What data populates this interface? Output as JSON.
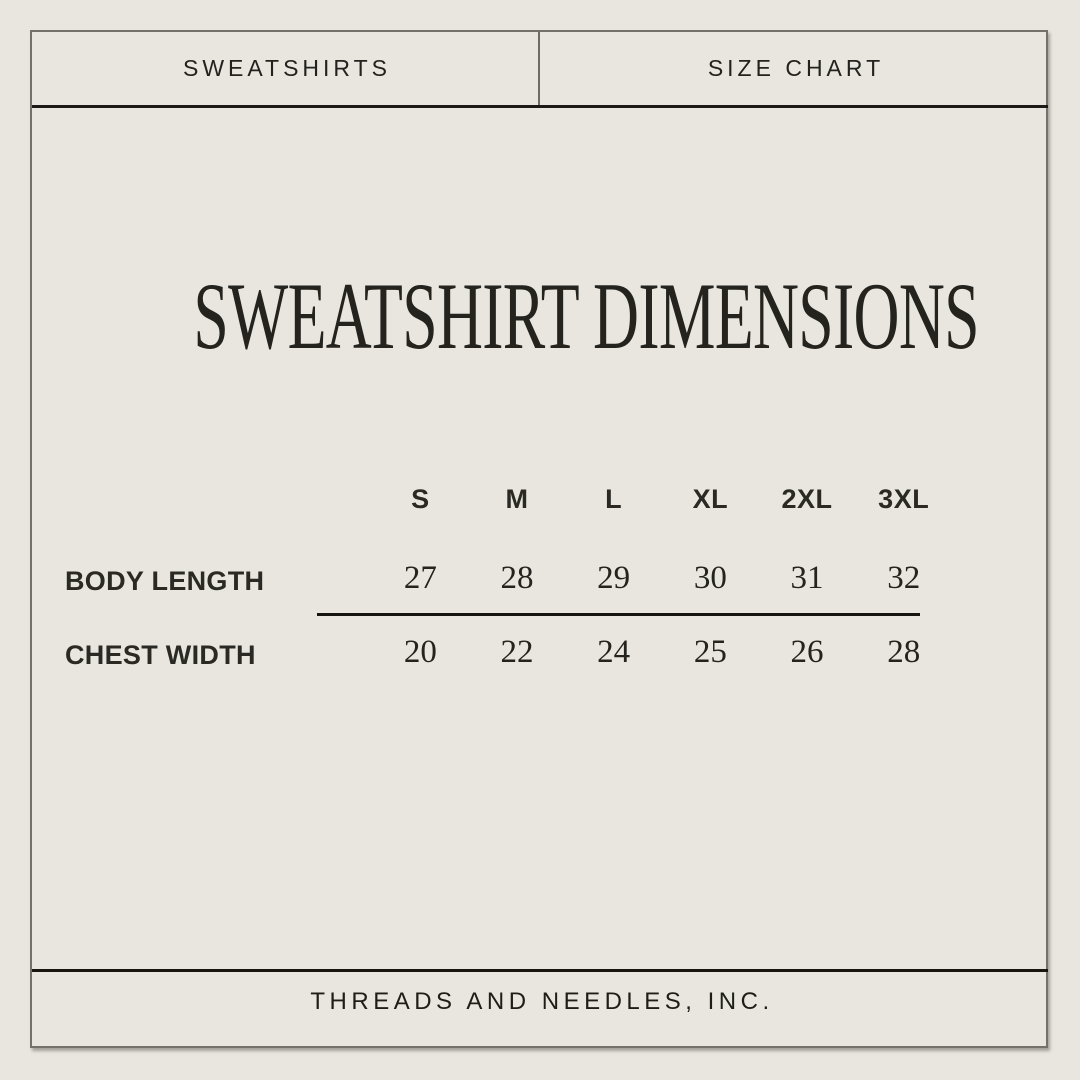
{
  "page": {
    "background_color": "#E9E6DF",
    "frame_color": "#74716B",
    "rule_color": "#16150F",
    "ink_color": "#24231E"
  },
  "header": {
    "left_tab": "SWEATSHIRTS",
    "right_tab": "SIZE CHART"
  },
  "title": "SWEATSHIRT DIMENSIONS",
  "chart_data": {
    "type": "table",
    "title": "SWEATSHIRT DIMENSIONS",
    "columns": [
      "S",
      "M",
      "L",
      "XL",
      "2XL",
      "3XL"
    ],
    "rows": [
      {
        "label": "BODY LENGTH",
        "values": [
          27,
          28,
          29,
          30,
          31,
          32
        ]
      },
      {
        "label": "CHEST WIDTH",
        "values": [
          20,
          22,
          24,
          25,
          26,
          28
        ]
      }
    ]
  },
  "footer": {
    "company_name": "THREADS AND NEEDLES, INC."
  }
}
